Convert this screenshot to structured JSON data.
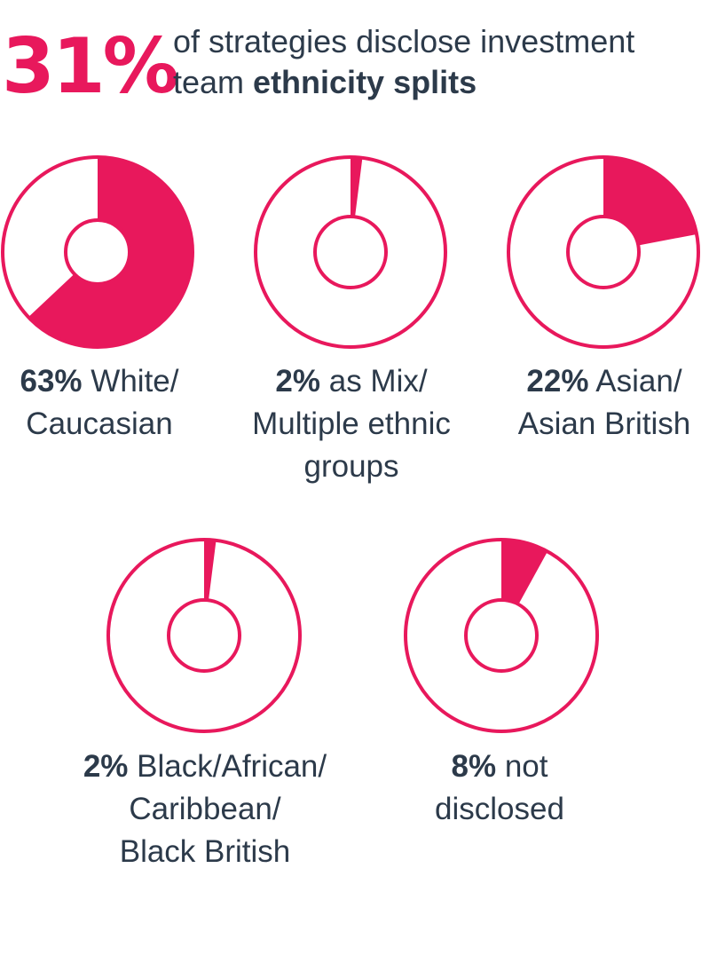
{
  "headline": {
    "value": "31%",
    "line1": "of strategies disclose investment",
    "line2_prefix": "team ",
    "line2_bold": "ethnicity splits"
  },
  "colors": {
    "accent": "#e8185c",
    "text": "#2c3a4a",
    "background": "#ffffff"
  },
  "chart_data": {
    "type": "pie",
    "variant": "donut",
    "unit": "%",
    "items": [
      {
        "value": 63,
        "value_label": "63%",
        "text_lines": [
          " White/",
          "Caucasian"
        ]
      },
      {
        "value": 2,
        "value_label": "2%",
        "text_lines": [
          " as Mix/",
          "Multiple ethnic",
          "groups"
        ]
      },
      {
        "value": 22,
        "value_label": "22%",
        "text_lines": [
          " Asian/",
          "Asian British"
        ]
      },
      {
        "value": 2,
        "value_label": "2%",
        "text_lines": [
          " Black/African/",
          "Caribbean/",
          "Black British"
        ]
      },
      {
        "value": 8,
        "value_label": "8%",
        "text_lines": [
          " not",
          "disclosed"
        ]
      }
    ]
  }
}
